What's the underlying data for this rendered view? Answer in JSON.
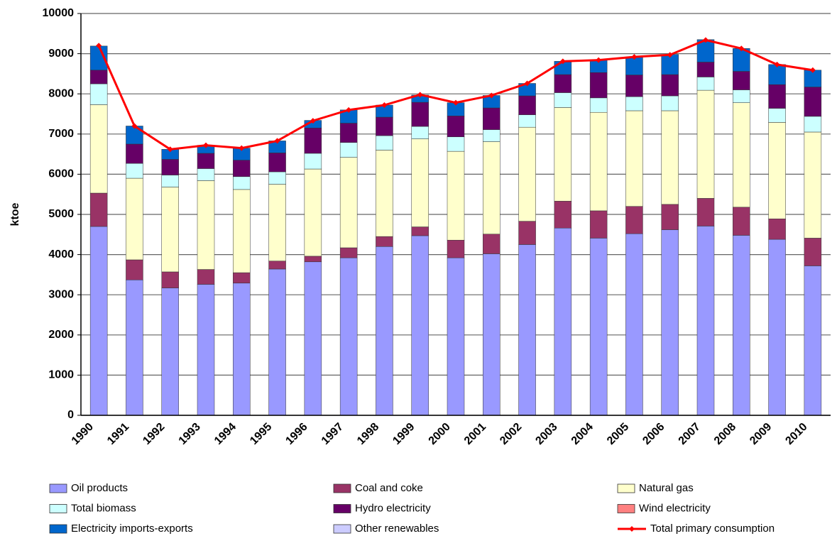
{
  "chart_data": {
    "type": "bar",
    "stacked": true,
    "y_label": "ktoe",
    "categories": [
      "1990",
      "1991",
      "1992",
      "1993",
      "1994",
      "1995",
      "1996",
      "1997",
      "1998",
      "1999",
      "2000",
      "2001",
      "2002",
      "2003",
      "2004",
      "2005",
      "2006",
      "2007",
      "2008",
      "2009",
      "2010"
    ],
    "ylim": [
      0,
      10000
    ],
    "yticks": [
      0,
      1000,
      2000,
      3000,
      4000,
      5000,
      6000,
      7000,
      8000,
      9000,
      10000
    ],
    "grid": true,
    "series": [
      {
        "name": "Oil products",
        "color": "#9999ff",
        "values": [
          4700,
          3370,
          3170,
          3260,
          3290,
          3640,
          3820,
          3920,
          4200,
          4470,
          3920,
          4020,
          4250,
          4660,
          4410,
          4520,
          4620,
          4710,
          4480,
          4380,
          3720
        ]
      },
      {
        "name": "Coal and coke",
        "color": "#993366",
        "values": [
          830,
          500,
          400,
          370,
          260,
          200,
          140,
          250,
          250,
          220,
          440,
          490,
          580,
          670,
          680,
          680,
          630,
          690,
          700,
          510,
          690
        ]
      },
      {
        "name": "Natural gas",
        "color": "#ffffcc",
        "values": [
          2200,
          2030,
          2110,
          2210,
          2070,
          1910,
          2170,
          2250,
          2150,
          2190,
          2210,
          2300,
          2340,
          2330,
          2450,
          2380,
          2330,
          2690,
          2600,
          2400,
          2640
        ]
      },
      {
        "name": "Total biomass",
        "color": "#ccffff",
        "values": [
          520,
          370,
          300,
          300,
          320,
          310,
          390,
          370,
          360,
          310,
          360,
          300,
          310,
          370,
          360,
          350,
          370,
          330,
          320,
          350,
          390
        ]
      },
      {
        "name": "Hydro electricity",
        "color": "#660066",
        "values": [
          340,
          480,
          390,
          380,
          410,
          470,
          630,
          480,
          460,
          600,
          520,
          540,
          470,
          450,
          630,
          540,
          530,
          370,
          460,
          590,
          730
        ]
      },
      {
        "name": "Wind electricity",
        "color": "#ff8080",
        "values": [
          0,
          0,
          0,
          0,
          0,
          0,
          0,
          0,
          0,
          0,
          0,
          0,
          0,
          0,
          0,
          0,
          0,
          0,
          0,
          0,
          0
        ]
      },
      {
        "name": "Electricity imports-exports",
        "color": "#0066cc",
        "values": [
          600,
          450,
          250,
          200,
          300,
          300,
          190,
          330,
          300,
          180,
          330,
          310,
          310,
          330,
          320,
          450,
          500,
          560,
          570,
          500,
          420
        ]
      },
      {
        "name": "Other renewables",
        "color": "#ccccff",
        "values": [
          0,
          0,
          0,
          0,
          0,
          0,
          0,
          0,
          0,
          0,
          0,
          0,
          0,
          0,
          0,
          0,
          0,
          0,
          0,
          0,
          0
        ]
      },
      {
        "name": "Total primary consumption",
        "color": "#ff0000",
        "type": "line",
        "values": [
          9200,
          7200,
          6620,
          6720,
          6650,
          6830,
          7330,
          7600,
          7720,
          7980,
          7780,
          7960,
          8260,
          8810,
          8840,
          8920,
          8970,
          9340,
          9130,
          8730,
          8590
        ]
      }
    ]
  }
}
